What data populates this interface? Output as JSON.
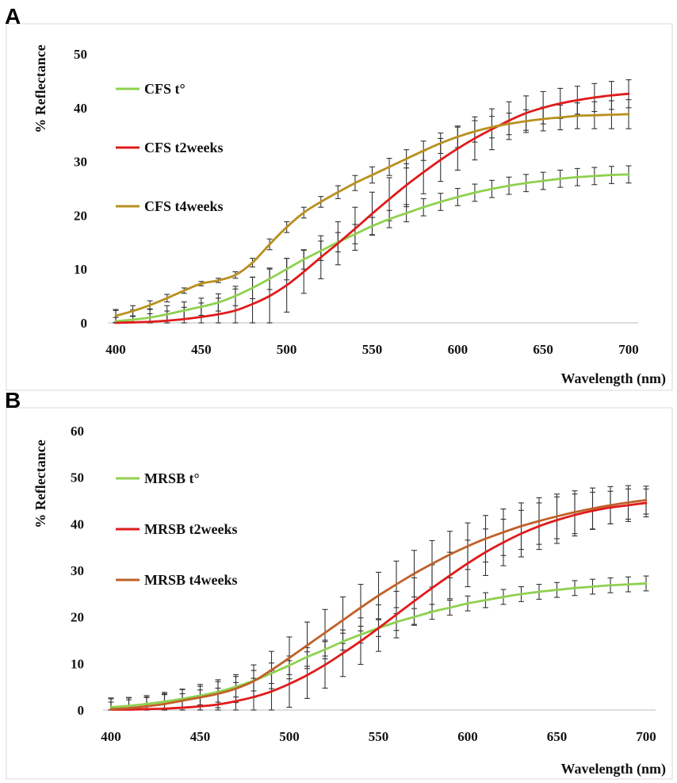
{
  "figure": {
    "panels": [
      {
        "letter": "A",
        "chart_data": {
          "type": "line",
          "title": "",
          "xlabel": "Wavelength (nm)",
          "ylabel": "% Reflectance",
          "xlim": [
            400,
            700
          ],
          "ylim": [
            0,
            50
          ],
          "xticks": [
            400,
            450,
            500,
            550,
            600,
            650,
            700
          ],
          "yticks": [
            0,
            10,
            20,
            30,
            40,
            50
          ],
          "grid": false,
          "legend_position": "top-left",
          "x": [
            400,
            410,
            420,
            430,
            440,
            450,
            460,
            470,
            480,
            490,
            500,
            510,
            520,
            530,
            540,
            550,
            560,
            570,
            580,
            590,
            600,
            610,
            620,
            630,
            640,
            650,
            660,
            670,
            680,
            690,
            700
          ],
          "series": [
            {
              "name": "CFS t°",
              "color": "#8fd14f",
              "values": [
                0.3,
                0.6,
                1.0,
                1.6,
                2.3,
                3.0,
                3.8,
                5.0,
                6.5,
                8.2,
                10.0,
                11.8,
                13.4,
                15.0,
                16.5,
                18.0,
                19.3,
                20.4,
                21.5,
                22.5,
                23.4,
                24.2,
                24.9,
                25.5,
                26.0,
                26.4,
                26.8,
                27.1,
                27.3,
                27.5,
                27.6
              ],
              "errors": [
                2.0,
                1.8,
                1.6,
                1.6,
                1.6,
                1.6,
                1.6,
                1.8,
                2.0,
                2.0,
                2.0,
                1.8,
                1.8,
                1.8,
                1.8,
                1.6,
                1.6,
                1.6,
                1.6,
                1.6,
                1.6,
                1.6,
                1.6,
                1.6,
                1.6,
                1.6,
                1.6,
                1.6,
                1.6,
                1.6,
                1.6
              ]
            },
            {
              "name": "CFS t2weeks",
              "color": "#e01b1b",
              "values": [
                0.0,
                0.1,
                0.2,
                0.4,
                0.7,
                1.1,
                1.6,
                2.3,
                3.5,
                5.0,
                7.0,
                9.5,
                12.2,
                14.8,
                17.5,
                20.3,
                23.0,
                25.6,
                28.0,
                30.3,
                32.4,
                34.3,
                36.0,
                37.6,
                39.0,
                40.0,
                40.8,
                41.4,
                41.9,
                42.3,
                42.6
              ],
              "errors": [
                1.0,
                1.2,
                1.5,
                1.8,
                2.2,
                2.6,
                3.0,
                4.0,
                5.0,
                5.0,
                5.0,
                4.0,
                4.0,
                4.0,
                4.0,
                4.0,
                4.0,
                4.0,
                4.0,
                4.0,
                4.0,
                4.0,
                3.8,
                3.5,
                3.2,
                3.0,
                2.8,
                2.6,
                2.6,
                2.6,
                2.6
              ]
            },
            {
              "name": "CFS t4weeks",
              "color": "#b8901e",
              "values": [
                1.3,
                2.2,
                3.3,
                4.6,
                6.0,
                7.3,
                7.9,
                8.9,
                11.2,
                14.6,
                17.8,
                20.5,
                22.5,
                24.3,
                26.0,
                27.5,
                29.0,
                30.5,
                32.0,
                33.4,
                34.6,
                35.6,
                36.4,
                37.0,
                37.5,
                37.9,
                38.2,
                38.5,
                38.6,
                38.7,
                38.8
              ],
              "errors": [
                1.2,
                1.0,
                0.8,
                0.7,
                0.5,
                0.4,
                0.4,
                0.6,
                0.8,
                1.0,
                1.0,
                1.0,
                1.0,
                1.2,
                1.4,
                1.5,
                1.6,
                1.7,
                1.8,
                1.9,
                2.0,
                2.0,
                2.0,
                2.0,
                2.1,
                2.2,
                2.3,
                2.4,
                2.5,
                2.6,
                2.7
              ]
            }
          ]
        }
      },
      {
        "letter": "B",
        "chart_data": {
          "type": "line",
          "title": "",
          "xlabel": "Wavelength (nm)",
          "ylabel": "% Reflectance",
          "xlim": [
            400,
            700
          ],
          "ylim": [
            0,
            60
          ],
          "xticks": [
            400,
            450,
            500,
            550,
            600,
            650,
            700
          ],
          "yticks": [
            0,
            10,
            20,
            30,
            40,
            50,
            60
          ],
          "grid": false,
          "legend_position": "top-left",
          "x": [
            400,
            410,
            420,
            430,
            440,
            450,
            460,
            470,
            480,
            490,
            500,
            510,
            520,
            530,
            540,
            550,
            560,
            570,
            580,
            590,
            600,
            610,
            620,
            630,
            640,
            650,
            660,
            670,
            680,
            690,
            700
          ],
          "series": [
            {
              "name": "MRSB t°",
              "color": "#8fd14f",
              "values": [
                0.6,
                0.9,
                1.3,
                1.8,
                2.4,
                3.1,
                3.9,
                5.0,
                6.3,
                7.9,
                9.6,
                11.4,
                13.0,
                14.7,
                16.2,
                17.6,
                18.9,
                20.0,
                21.1,
                22.0,
                22.9,
                23.6,
                24.3,
                24.9,
                25.4,
                25.8,
                26.2,
                26.5,
                26.8,
                27.0,
                27.2
              ],
              "errors": [
                1.8,
                1.8,
                1.8,
                2.0,
                2.0,
                2.0,
                2.2,
                2.2,
                2.2,
                2.2,
                2.0,
                2.0,
                2.0,
                1.8,
                1.8,
                1.8,
                1.8,
                1.8,
                1.6,
                1.6,
                1.6,
                1.6,
                1.6,
                1.6,
                1.6,
                1.6,
                1.6,
                1.6,
                1.6,
                1.6,
                1.6
              ]
            },
            {
              "name": "MRSB t2weeks",
              "color": "#e01b1b",
              "values": [
                0.1,
                0.1,
                0.2,
                0.3,
                0.5,
                0.8,
                1.2,
                1.9,
                2.8,
                4.0,
                5.6,
                7.5,
                9.7,
                12.2,
                14.8,
                17.6,
                20.5,
                23.4,
                26.2,
                28.9,
                31.5,
                33.9,
                36.0,
                37.9,
                39.5,
                40.8,
                41.9,
                42.8,
                43.5,
                44.0,
                44.5
              ],
              "errors": [
                2.5,
                2.5,
                2.5,
                3.0,
                3.0,
                3.5,
                3.5,
                4.0,
                4.0,
                4.5,
                5.0,
                5.0,
                5.0,
                5.0,
                5.0,
                5.0,
                5.0,
                5.0,
                5.0,
                5.0,
                5.0,
                5.0,
                5.0,
                5.0,
                5.0,
                5.0,
                4.5,
                4.0,
                3.5,
                3.5,
                3.0
              ]
            },
            {
              "name": "MRSB t4weeks",
              "color": "#c0602a",
              "values": [
                0.2,
                0.4,
                0.8,
                1.3,
                2.0,
                2.7,
                3.5,
                4.6,
                6.2,
                8.6,
                11.2,
                13.9,
                16.6,
                19.3,
                22.0,
                24.6,
                27.0,
                29.3,
                31.4,
                33.4,
                35.2,
                36.8,
                38.2,
                39.5,
                40.6,
                41.6,
                42.5,
                43.3,
                44.0,
                44.6,
                45.1
              ],
              "errors": [
                1.5,
                1.8,
                2.0,
                2.2,
                2.5,
                2.8,
                3.0,
                3.0,
                3.5,
                4.0,
                4.5,
                5.0,
                5.0,
                5.0,
                5.0,
                5.0,
                5.0,
                5.0,
                5.0,
                5.0,
                5.0,
                5.0,
                5.0,
                5.0,
                5.0,
                4.8,
                4.6,
                4.4,
                4.0,
                3.6,
                3.0
              ]
            }
          ]
        }
      }
    ]
  }
}
